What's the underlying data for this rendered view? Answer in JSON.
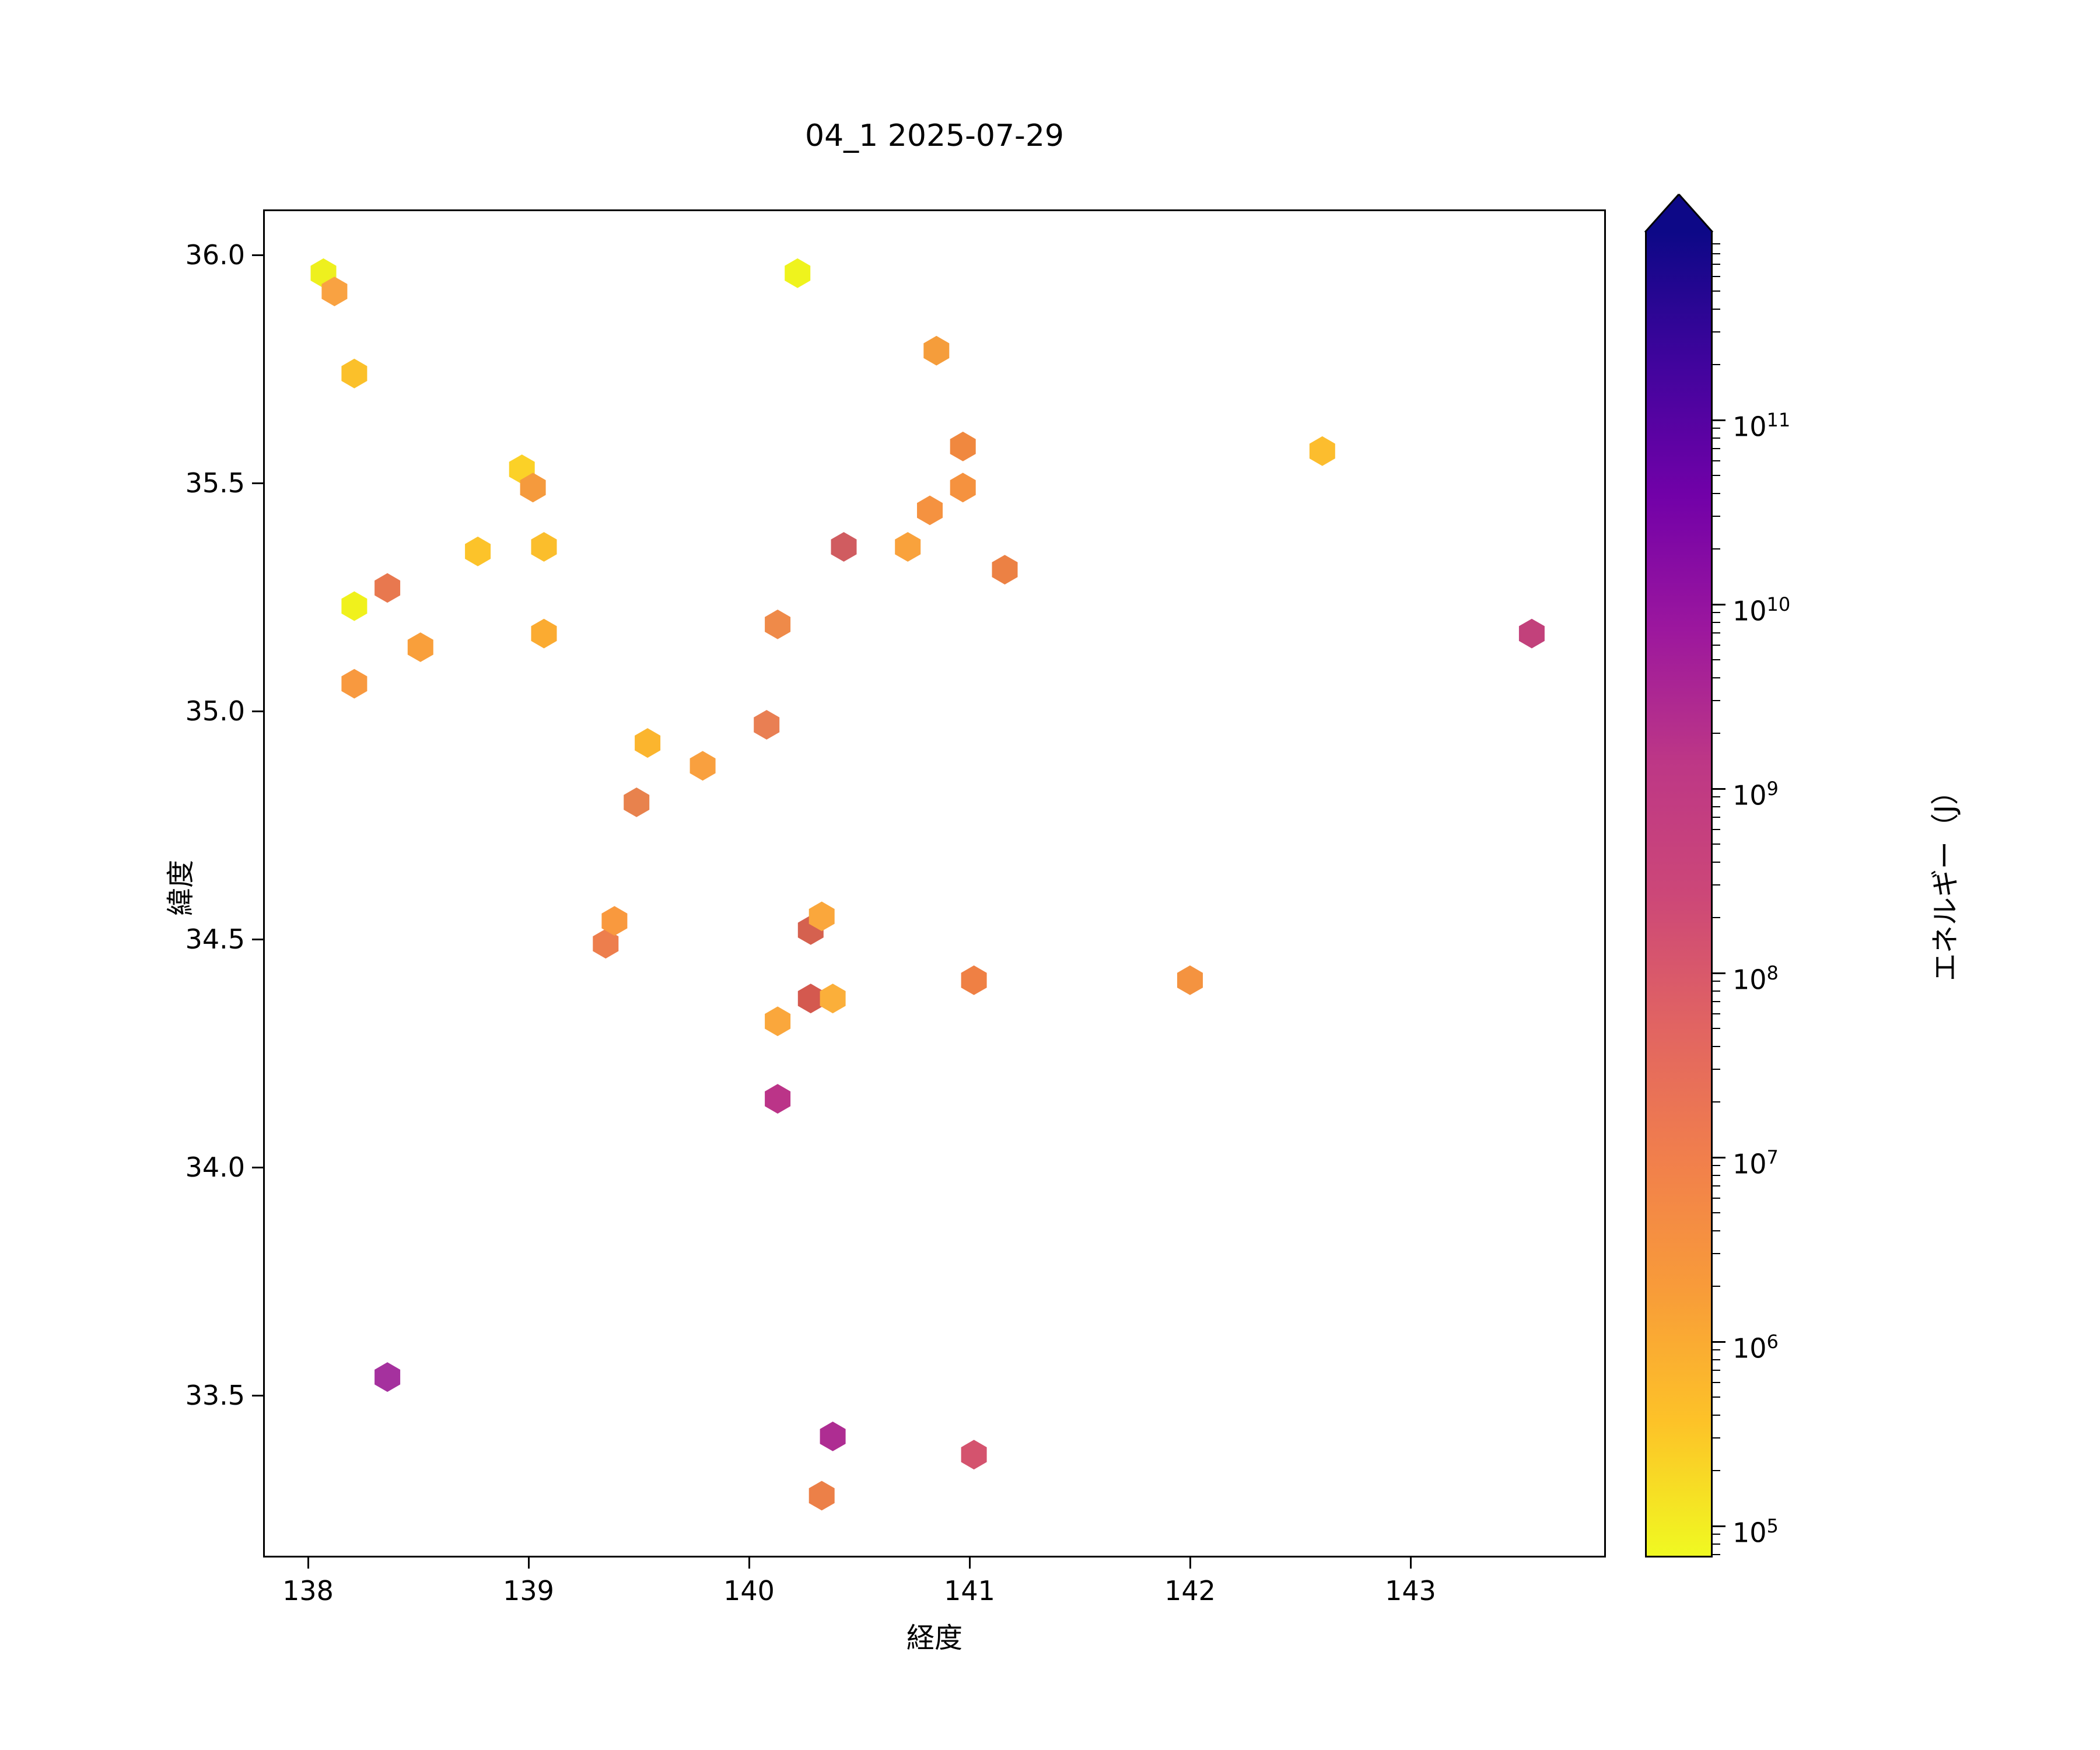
{
  "figure": {
    "title": "04_1 2025-07-29"
  },
  "chart_data": {
    "type": "scatter",
    "marker": "hexagon",
    "title": "04_1 2025-07-29",
    "xlabel": "経度",
    "ylabel": "緯度",
    "xlim": [
      137.8,
      143.9
    ],
    "ylim": [
      33.14,
      36.1
    ],
    "x_ticks": [
      138,
      139,
      140,
      141,
      142,
      143
    ],
    "y_ticks": [
      "36.0",
      "35.5",
      "35.0",
      "34.5",
      "34.0",
      "33.5"
    ],
    "grid": false,
    "legend_position": "none",
    "colorbar": {
      "label": "エネルギー（J）",
      "scale": "log",
      "colormap": "plasma_r",
      "extend": "max",
      "tick_exponents": [
        11,
        10,
        9,
        8,
        7,
        6,
        5
      ],
      "range_log10": [
        4.83,
        12.02
      ],
      "arrow_color": "#0d0887",
      "plasma_stops": [
        "#0d0887",
        "#41049d",
        "#7201a8",
        "#9c179e",
        "#bd3786",
        "#cc4778",
        "#e16462",
        "#f17f4c",
        "#f89c39",
        "#fdc328",
        "#f0f921"
      ]
    },
    "points": [
      {
        "lon": 138.07,
        "lat": 35.96,
        "color": "#eef01e",
        "energy_j": 90000.0
      },
      {
        "lon": 138.12,
        "lat": 35.92,
        "color": "#f9a242",
        "energy_j": 1300000.0
      },
      {
        "lon": 138.21,
        "lat": 35.74,
        "color": "#fbc02a",
        "energy_j": 350000.0
      },
      {
        "lon": 138.97,
        "lat": 35.53,
        "color": "#fbd127",
        "energy_j": 200000.0
      },
      {
        "lon": 139.02,
        "lat": 35.49,
        "color": "#f59a3d",
        "energy_j": 1600000.0
      },
      {
        "lon": 138.77,
        "lat": 35.35,
        "color": "#fcc32a",
        "energy_j": 350000.0
      },
      {
        "lon": 139.07,
        "lat": 35.36,
        "color": "#fbbe2c",
        "energy_j": 400000.0
      },
      {
        "lon": 138.36,
        "lat": 35.27,
        "color": "#e8784f",
        "energy_j": 7000000.0
      },
      {
        "lon": 138.21,
        "lat": 35.23,
        "color": "#f0f11c",
        "energy_j": 90000.0
      },
      {
        "lon": 138.51,
        "lat": 35.14,
        "color": "#f99f3b",
        "energy_j": 1300000.0
      },
      {
        "lon": 139.07,
        "lat": 35.17,
        "color": "#fbab31",
        "energy_j": 800000.0
      },
      {
        "lon": 138.21,
        "lat": 35.06,
        "color": "#f8993f",
        "energy_j": 1600000.0
      },
      {
        "lon": 140.22,
        "lat": 35.96,
        "color": "#eff31d",
        "energy_j": 90000.0
      },
      {
        "lon": 140.85,
        "lat": 35.79,
        "color": "#f59d3b",
        "energy_j": 1300000.0
      },
      {
        "lon": 140.97,
        "lat": 35.58,
        "color": "#f0883f",
        "energy_j": 3000000.0
      },
      {
        "lon": 140.97,
        "lat": 35.49,
        "color": "#f5923f",
        "energy_j": 2200000.0
      },
      {
        "lon": 140.82,
        "lat": 35.44,
        "color": "#f59240",
        "energy_j": 2200000.0
      },
      {
        "lon": 140.43,
        "lat": 35.36,
        "color": "#d05c60",
        "energy_j": 36000000.0
      },
      {
        "lon": 140.72,
        "lat": 35.36,
        "color": "#f9a23c",
        "energy_j": 1200000.0
      },
      {
        "lon": 141.16,
        "lat": 35.31,
        "color": "#ec8144",
        "energy_j": 4500000.0
      },
      {
        "lon": 140.13,
        "lat": 35.19,
        "color": "#ef8a49",
        "energy_j": 3000000.0
      },
      {
        "lon": 142.6,
        "lat": 35.57,
        "color": "#fcbd2e",
        "energy_j": 350000.0
      },
      {
        "lon": 143.55,
        "lat": 35.17,
        "color": "#c2417b",
        "energy_j": 400000000.0
      },
      {
        "lon": 140.08,
        "lat": 34.97,
        "color": "#e97f53",
        "energy_j": 6000000.0
      },
      {
        "lon": 139.54,
        "lat": 34.93,
        "color": "#fbb52e",
        "energy_j": 600000.0
      },
      {
        "lon": 139.79,
        "lat": 34.88,
        "color": "#f9a03f",
        "energy_j": 1400000.0
      },
      {
        "lon": 139.49,
        "lat": 34.8,
        "color": "#e8824d",
        "energy_j": 5000000.0
      },
      {
        "lon": 139.35,
        "lat": 34.49,
        "color": "#ed7e4d",
        "energy_j": 5000000.0
      },
      {
        "lon": 139.39,
        "lat": 34.54,
        "color": "#f9993e",
        "energy_j": 1600000.0
      },
      {
        "lon": 140.28,
        "lat": 34.52,
        "color": "#d5614f",
        "energy_j": 30000000.0
      },
      {
        "lon": 140.33,
        "lat": 34.55,
        "color": "#faa73c",
        "energy_j": 1100000.0
      },
      {
        "lon": 140.28,
        "lat": 34.37,
        "color": "#d4594f",
        "energy_j": 35000000.0
      },
      {
        "lon": 140.38,
        "lat": 34.37,
        "color": "#fbaf3a",
        "energy_j": 700000.0
      },
      {
        "lon": 140.13,
        "lat": 34.32,
        "color": "#faa73c",
        "energy_j": 1100000.0
      },
      {
        "lon": 141.02,
        "lat": 34.41,
        "color": "#ef8044",
        "energy_j": 4500000.0
      },
      {
        "lon": 142.0,
        "lat": 34.41,
        "color": "#f49340",
        "energy_j": 2200000.0
      },
      {
        "lon": 140.13,
        "lat": 34.15,
        "color": "#bb3488",
        "energy_j": 1000000000.0
      },
      {
        "lon": 138.36,
        "lat": 33.54,
        "color": "#a5319e",
        "energy_j": 4000000000.0
      },
      {
        "lon": 140.38,
        "lat": 33.41,
        "color": "#ae2d92",
        "energy_j": 2000000000.0
      },
      {
        "lon": 141.02,
        "lat": 33.37,
        "color": "#d4536e",
        "energy_j": 80000000.0
      },
      {
        "lon": 140.33,
        "lat": 33.28,
        "color": "#ec8048",
        "energy_j": 4500000.0
      }
    ]
  }
}
